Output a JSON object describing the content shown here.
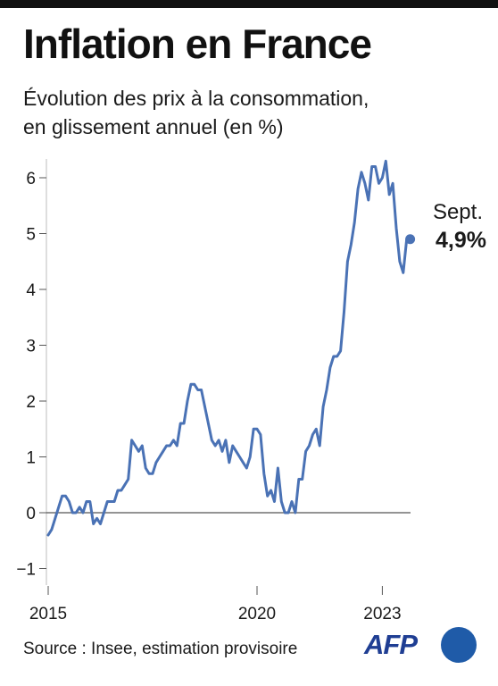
{
  "title": "Inflation en France",
  "subtitle_lines": [
    "Évolution des prix à la consommation,",
    "en glissement annuel (en %)"
  ],
  "source": "Source : Insee, estimation provisoire",
  "logo_text": "AFP",
  "colors": {
    "line": "#4a72b5",
    "axis": "#555555",
    "text": "#1a1a1a",
    "logo": "#1f3e93"
  },
  "chart_data": {
    "type": "line",
    "title": "Inflation en France",
    "subtitle": "Évolution des prix à la consommation, en glissement annuel (en %)",
    "ylim": [
      -1,
      6.3
    ],
    "yticks": [
      -1,
      0,
      1,
      2,
      3,
      4,
      5,
      6
    ],
    "ytick_labels": [
      "−1",
      "0",
      "1",
      "2",
      "3",
      "4",
      "5",
      "6"
    ],
    "xticks": [
      {
        "date": "2015-01",
        "label": "2015"
      },
      {
        "date": "2020-01",
        "label": "2020"
      },
      {
        "date": "2023-01",
        "label": "2023"
      }
    ],
    "grid": false,
    "annotation": {
      "date": "2023-09",
      "value": 4.9,
      "line1": "Sept.",
      "line2": "4,9%"
    },
    "series": [
      {
        "start": "2015-01",
        "frequency": "monthly",
        "values": [
          -0.4,
          -0.3,
          -0.1,
          0.1,
          0.3,
          0.3,
          0.2,
          0.0,
          0.0,
          0.1,
          0.0,
          0.2,
          0.2,
          -0.2,
          -0.1,
          -0.2,
          0.0,
          0.2,
          0.2,
          0.2,
          0.4,
          0.4,
          0.5,
          0.6,
          1.3,
          1.2,
          1.1,
          1.2,
          0.8,
          0.7,
          0.7,
          0.9,
          1.0,
          1.1,
          1.2,
          1.2,
          1.3,
          1.2,
          1.6,
          1.6,
          2.0,
          2.3,
          2.3,
          2.2,
          2.2,
          1.9,
          1.6,
          1.3,
          1.2,
          1.3,
          1.1,
          1.3,
          0.9,
          1.2,
          1.1,
          1.0,
          0.9,
          0.8,
          1.0,
          1.5,
          1.5,
          1.4,
          0.7,
          0.3,
          0.4,
          0.2,
          0.8,
          0.2,
          0.0,
          0.0,
          0.2,
          0.0,
          0.6,
          0.6,
          1.1,
          1.2,
          1.4,
          1.5,
          1.2,
          1.9,
          2.2,
          2.6,
          2.8,
          2.8,
          2.9,
          3.6,
          4.5,
          4.8,
          5.2,
          5.8,
          6.1,
          5.9,
          5.6,
          6.2,
          6.2,
          5.9,
          6.0,
          6.3,
          5.7,
          5.9,
          5.1,
          4.5,
          4.3,
          4.9,
          4.9
        ]
      }
    ]
  }
}
